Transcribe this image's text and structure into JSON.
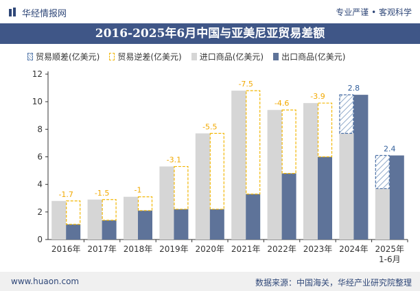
{
  "header": {
    "brand": "华经情报网",
    "tagline": "专业严谨 • 客观科学"
  },
  "footer": {
    "url": "www.huaon.com",
    "source": "数据来源：中国海关，华经产业研究院整理"
  },
  "colors": {
    "import": "#d6d6d6",
    "export": "#5e7399",
    "deficit_border": "#f2b705",
    "surplus_border": "#4a6fa5",
    "deficit_label": "#f2a900",
    "surplus_label": "#2f5d9a"
  },
  "chart_data": {
    "type": "bar",
    "title": "2016-2025年6月中国与亚美尼亚贸易差额",
    "categories": [
      "2016年",
      "2017年",
      "2018年",
      "2019年",
      "2020年",
      "2021年",
      "2022年",
      "2023年",
      "2024年",
      "2025年\n1-6月"
    ],
    "series": [
      {
        "name": "进口商品(亿美元)",
        "values": [
          2.8,
          2.9,
          3.1,
          5.3,
          7.7,
          10.8,
          9.4,
          9.9,
          7.7,
          3.7
        ]
      },
      {
        "name": "出口商品(亿美元)",
        "values": [
          1.1,
          1.4,
          2.1,
          2.2,
          2.2,
          3.3,
          4.8,
          6.0,
          10.5,
          6.1
        ]
      }
    ],
    "balance": {
      "surplus_name": "贸易顺差(亿美元)",
      "deficit_name": "贸易逆差(亿美元)",
      "values": [
        -1.7,
        -1.5,
        -1,
        -3.1,
        -5.5,
        -7.5,
        -4.6,
        -3.9,
        2.8,
        2.4
      ]
    },
    "ylim": [
      0,
      12
    ],
    "yticks": [
      0,
      2,
      4,
      6,
      8,
      10,
      12
    ],
    "grid": false,
    "legend": "top-left"
  }
}
